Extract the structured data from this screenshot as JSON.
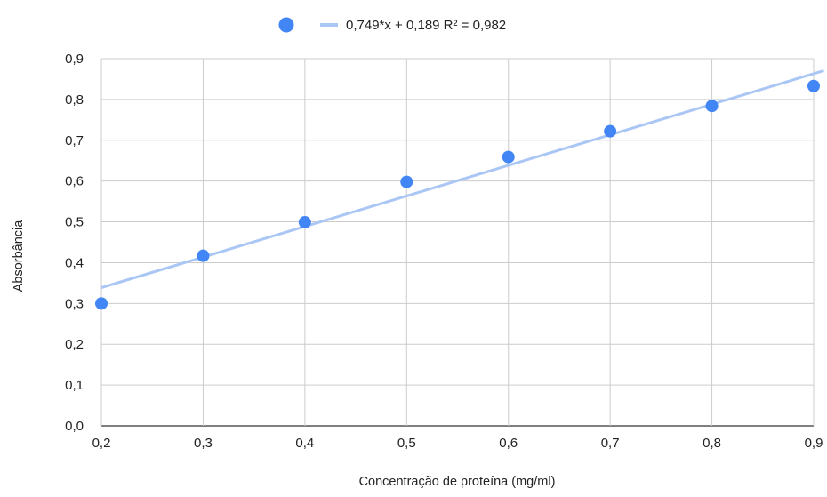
{
  "chart_data": {
    "type": "scatter",
    "xlabel": "Concentração de proteína (mg/ml)",
    "ylabel": "Absorbância",
    "xlim": [
      0.2,
      0.9
    ],
    "ylim": [
      0.0,
      0.9
    ],
    "x_ticks": [
      "0,2",
      "0,3",
      "0,4",
      "0,5",
      "0,6",
      "0,7",
      "0,8",
      "0,9"
    ],
    "y_ticks": [
      "0,0",
      "0,1",
      "0,2",
      "0,3",
      "0,4",
      "0,5",
      "0,6",
      "0,7",
      "0,8",
      "0,9"
    ],
    "grid": true,
    "legend_position": "top",
    "series": [
      {
        "x": [
          0.2,
          0.3,
          0.4,
          0.5,
          0.6,
          0.7,
          0.8,
          0.9
        ],
        "y": [
          0.3,
          0.417,
          0.499,
          0.598,
          0.659,
          0.722,
          0.784,
          0.833
        ],
        "color": "#4285f4"
      }
    ],
    "trendline": {
      "label": "0,749*x + 0,189 R² = 0,982",
      "slope": 0.749,
      "intercept": 0.189,
      "r2": 0.982,
      "color": "#a9c6f5",
      "x_range": [
        0.2,
        0.91
      ]
    }
  }
}
